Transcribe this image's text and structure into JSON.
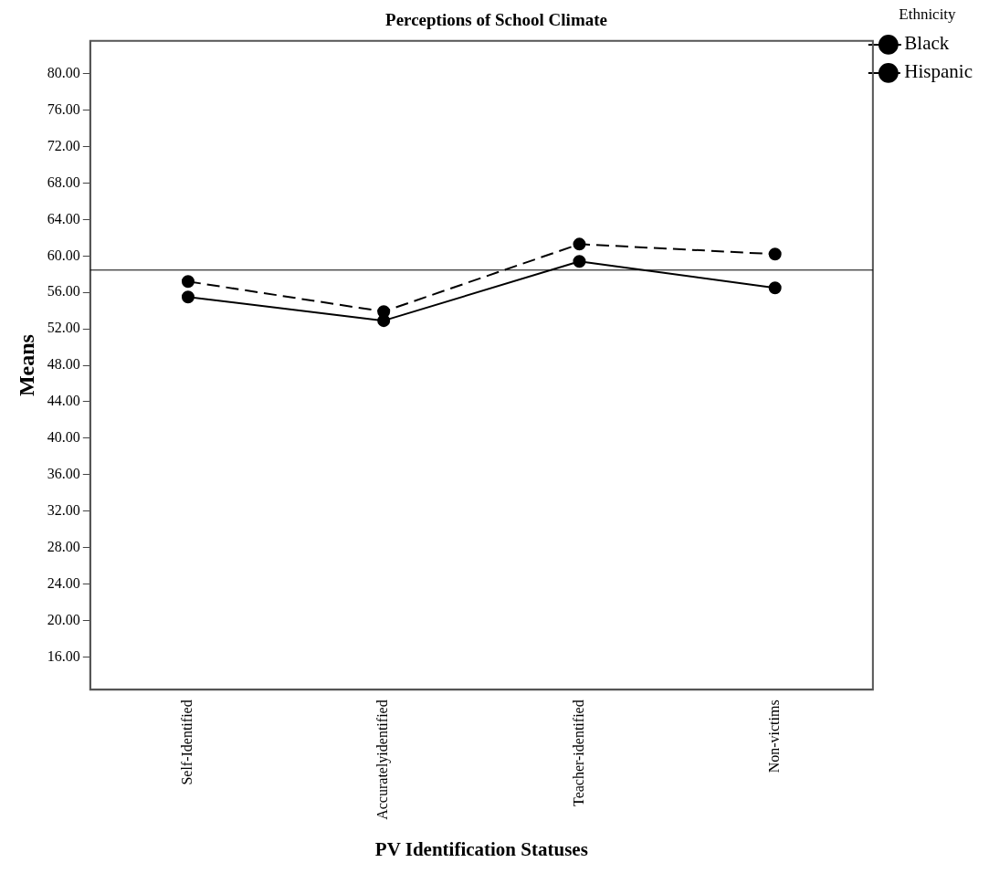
{
  "chart_data": {
    "type": "line",
    "title": "Perceptions of School Climate",
    "xlabel": "PV Identification Statuses",
    "ylabel": "Means",
    "legend_title": "Ethnicity",
    "legend": "top right",
    "grid": false,
    "marker": "circle",
    "categories": [
      "Self-Identified",
      "Accuratelyidentified",
      "Teacher-identified",
      "Non-victims"
    ],
    "series": [
      {
        "name": "Black",
        "color": "#000000",
        "line_style": "solid",
        "values": [
          55.5,
          52.9,
          59.4,
          56.5
        ]
      },
      {
        "name": "Hispanic",
        "color": "#000000",
        "line_style": "dashed",
        "values": [
          57.2,
          53.9,
          61.3,
          60.2
        ]
      }
    ],
    "ylim": [
      12.4,
      83.6
    ],
    "yticks": [
      {
        "value": 16,
        "label": "16.00"
      },
      {
        "value": 20,
        "label": "20.00"
      },
      {
        "value": 24,
        "label": "24.00"
      },
      {
        "value": 28,
        "label": "28.00"
      },
      {
        "value": 32,
        "label": "32.00"
      },
      {
        "value": 36,
        "label": "36.00"
      },
      {
        "value": 40,
        "label": "40.00"
      },
      {
        "value": 44,
        "label": "44.00"
      },
      {
        "value": 48,
        "label": "48.00"
      },
      {
        "value": 52,
        "label": "52.00"
      },
      {
        "value": 56,
        "label": "56.00"
      },
      {
        "value": 60,
        "label": "60.00"
      },
      {
        "value": 64,
        "label": "64.00"
      },
      {
        "value": 68,
        "label": "68.00"
      },
      {
        "value": 72,
        "label": "72.00"
      },
      {
        "value": 76,
        "label": "76.00"
      },
      {
        "value": 80,
        "label": "80.00"
      }
    ],
    "ref_lines": [
      {
        "axis": "y",
        "value": 58.45,
        "color": "#000000"
      }
    ]
  }
}
